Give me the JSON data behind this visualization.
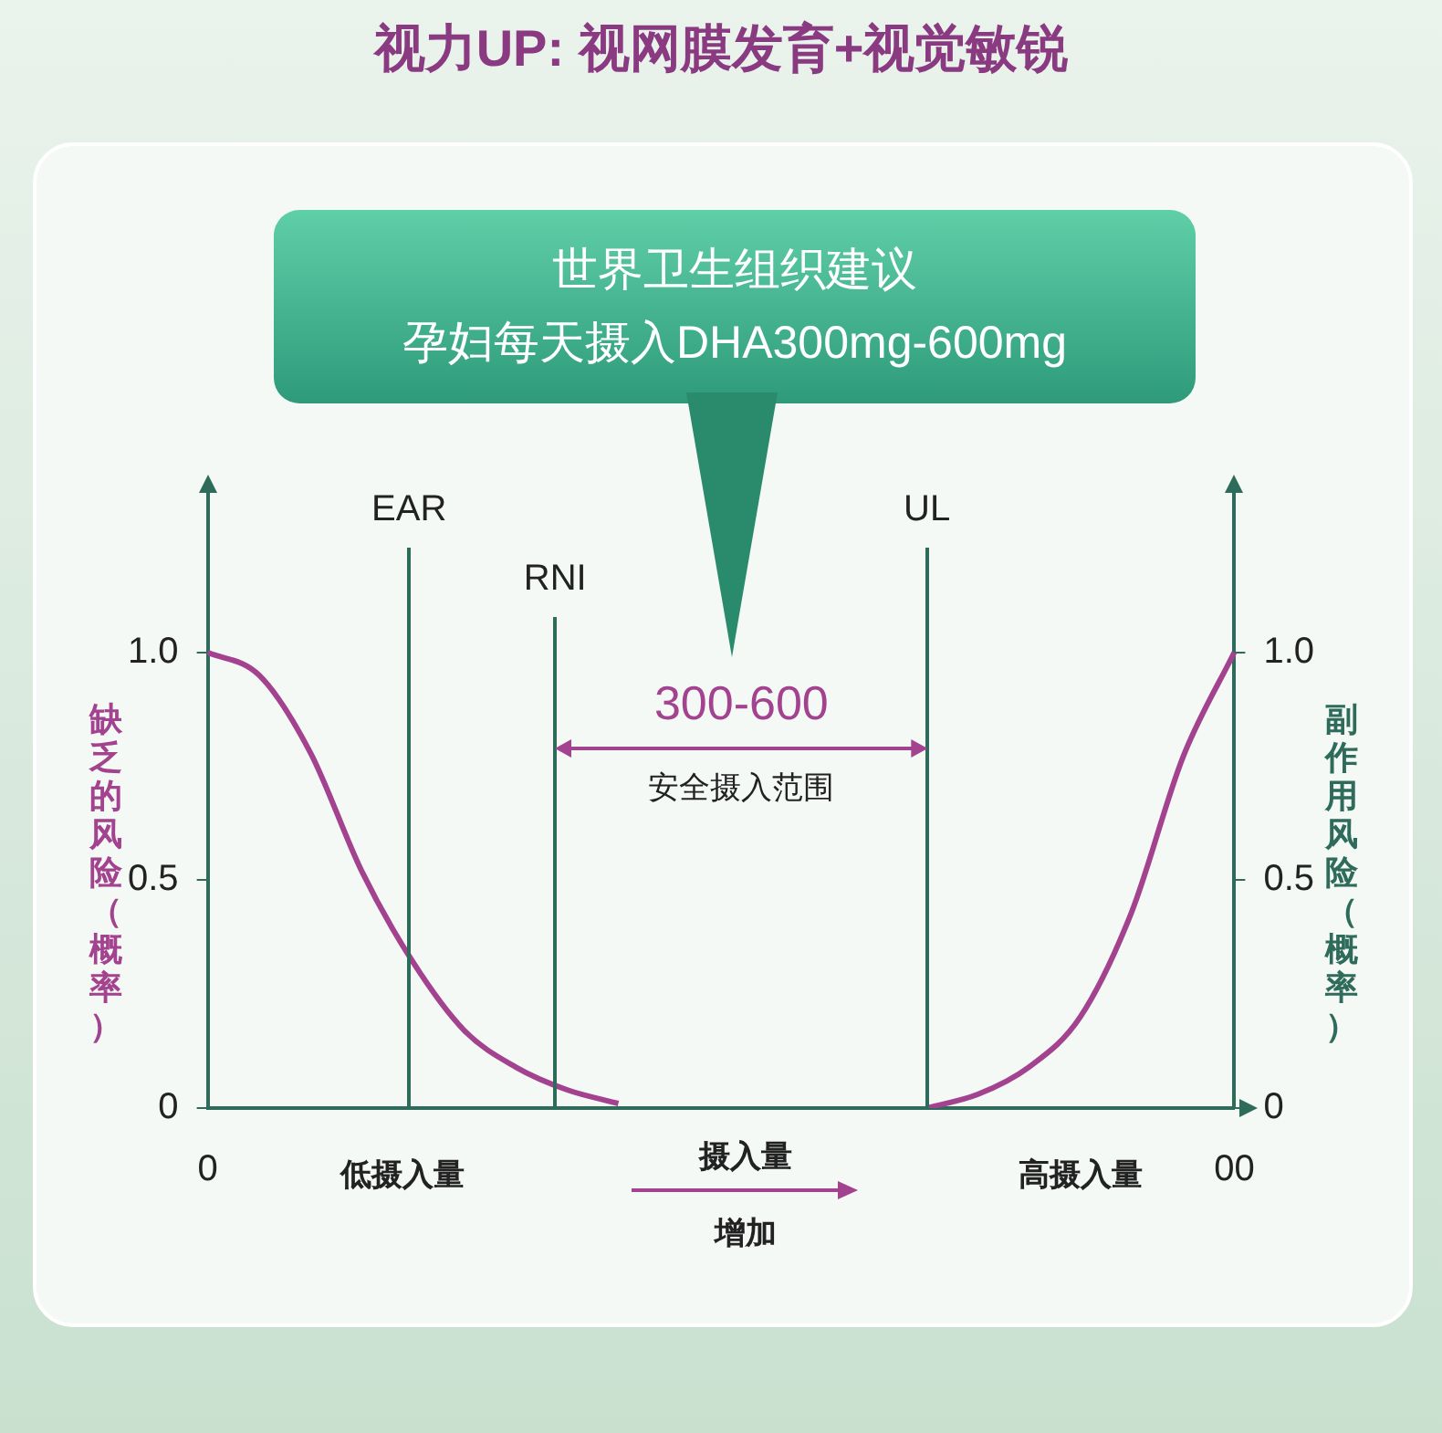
{
  "chart_data": {
    "type": "line",
    "title": "视力UP: 视网膜发育+视觉敏锐",
    "ylabel": "缺乏的风险（概率）",
    "y2label": "副作用风险（概率）",
    "categories": [
      "0",
      null,
      null,
      null,
      null,
      null,
      null,
      null,
      null,
      null,
      null,
      null,
      null,
      null,
      null,
      null,
      null,
      null,
      null,
      null,
      "00"
    ],
    "ylim": [
      0,
      1.35
    ],
    "yticks": [
      0,
      0.5,
      {
        "value": 1,
        "label": "1.0"
      }
    ],
    "y2lim": [
      0,
      1.35
    ],
    "y2ticks": [
      0,
      0.5,
      {
        "value": 1,
        "label": "1.0"
      }
    ],
    "grid": false,
    "legend": false,
    "marker": "none",
    "line_style": "solid",
    "series": [
      {
        "color": "#a3428f",
        "values": [
          1,
          0.95,
          0.78,
          0.52,
          0.32,
          0.17,
          0.09,
          0.04,
          0.01,
          null,
          null,
          null,
          null,
          null,
          null,
          null,
          null,
          null,
          null,
          null,
          null
        ]
      },
      {
        "color": "#a3428f",
        "axis": "y2",
        "values": [
          null,
          null,
          null,
          null,
          null,
          null,
          null,
          null,
          null,
          null,
          null,
          null,
          null,
          null,
          0,
          0.03,
          0.09,
          0.2,
          0.43,
          0.77,
          1
        ]
      }
    ],
    "annotations": [
      "世界卫生组织建议",
      "孕妇每天摄入DHA300mg-600mg",
      "300-600",
      "安全摄入范围",
      "摄入量",
      "增加",
      "低摄入量",
      "高摄入量",
      "EAR",
      "RNI",
      "UL"
    ]
  }
}
